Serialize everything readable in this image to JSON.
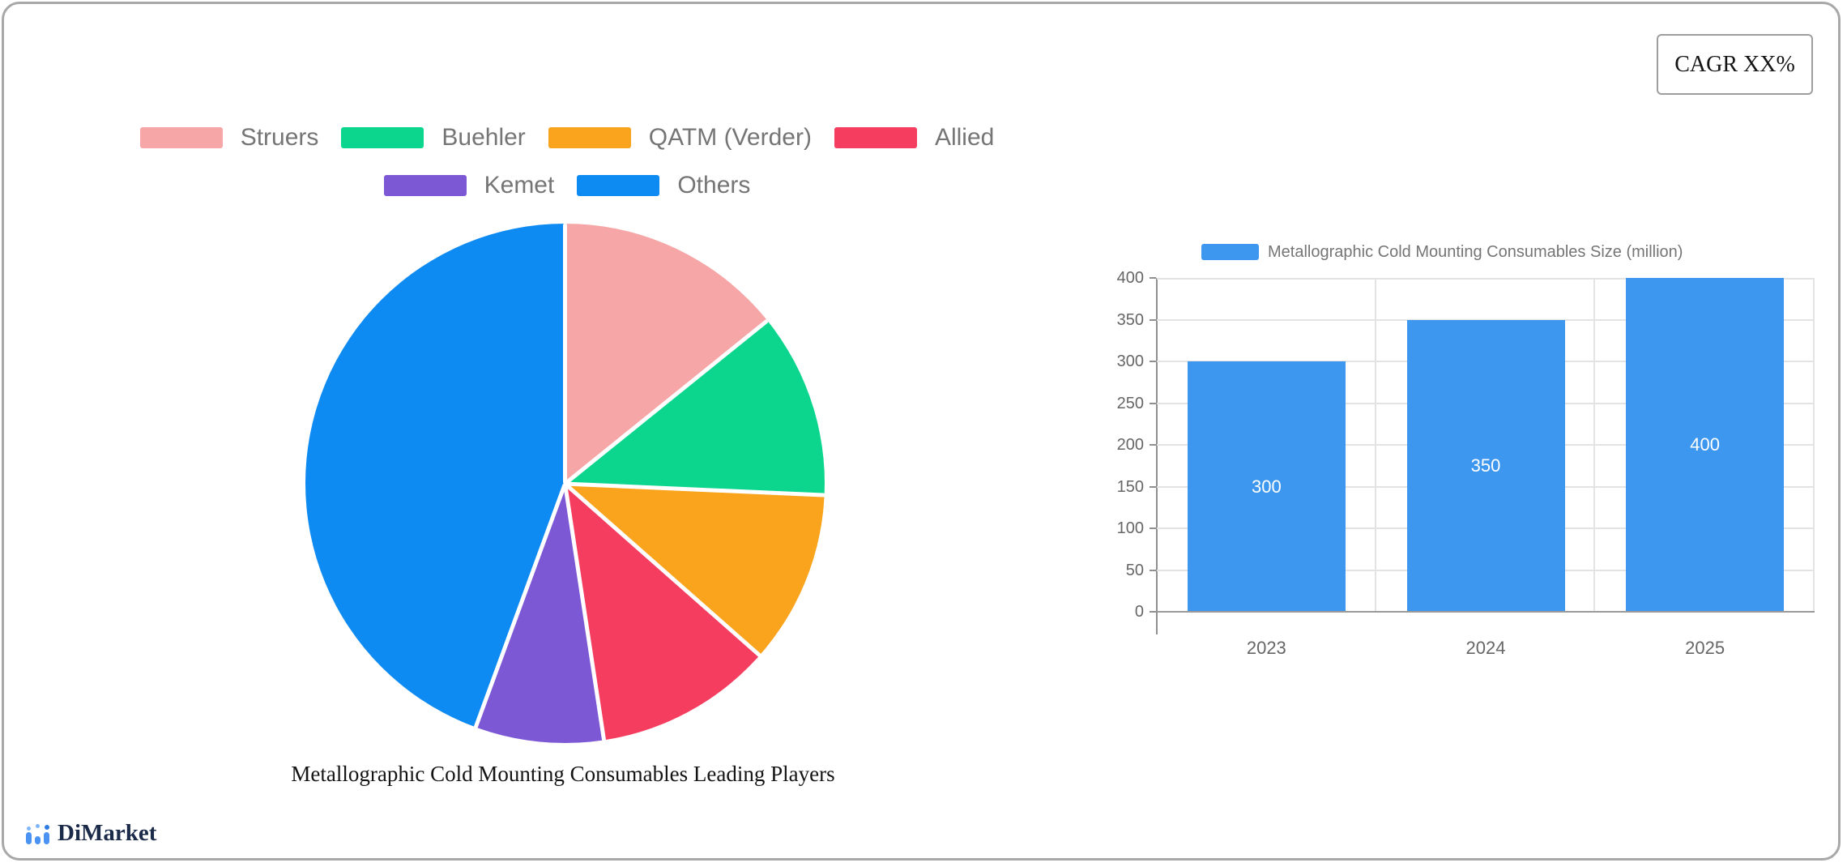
{
  "frame": {
    "cagr_label": "CAGR XX%",
    "border_color": "#a8a8a8"
  },
  "brand": {
    "name": "DiMarket",
    "text_color": "#1c2b4a",
    "icon_blue": "#4b93f2",
    "icon_light_blue": "#7fb5f9",
    "icon_dark_blue": "#2e7ce2"
  },
  "pie": {
    "title": "Metallographic Cold Mounting Consumables Leading Players",
    "legend_rows": [
      [
        "Struers",
        "Buehler",
        "QATM (Verder)",
        "Allied"
      ],
      [
        "Kemet",
        "Others"
      ]
    ],
    "legend_text_color": "#757575"
  },
  "bar": {
    "legend_label": "Metallographic Cold Mounting Consumables Size (million)",
    "bar_color": "#3E97EE",
    "axis_text_color": "#666666",
    "value_label_color": "#ffffff"
  },
  "chart_data": [
    {
      "type": "pie",
      "title": "Metallographic Cold Mounting Consumables Leading Players",
      "legend_position": "top",
      "start_angle_deg": 0,
      "direction": "clockwise",
      "series": [
        {
          "name": "Struers",
          "value": 14.2,
          "color": "#F6A6A6"
        },
        {
          "name": "Buehler",
          "value": 11.5,
          "color": "#0CD68E"
        },
        {
          "name": "QATM (Verder)",
          "value": 10.8,
          "color": "#F9A41C"
        },
        {
          "name": "Allied",
          "value": 11.1,
          "color": "#F53D5F"
        },
        {
          "name": "Kemet",
          "value": 8.0,
          "color": "#7C58D5"
        },
        {
          "name": "Others",
          "value": 44.4,
          "color": "#0E8BF2"
        }
      ],
      "value_unit": "percent_share_estimated"
    },
    {
      "type": "bar",
      "legend": [
        "Metallographic Cold Mounting Consumables Size (million)"
      ],
      "categories": [
        "2023",
        "2024",
        "2025"
      ],
      "values": [
        300,
        350,
        400
      ],
      "ylim": [
        0,
        400
      ],
      "ytick_step": 50,
      "y_ticks": [
        0,
        50,
        100,
        150,
        200,
        250,
        300,
        350,
        400
      ],
      "grid": true,
      "bar_color": "#3E97EE",
      "value_labels": [
        "300",
        "350",
        "400"
      ],
      "value_label_position": "inside-center"
    }
  ]
}
